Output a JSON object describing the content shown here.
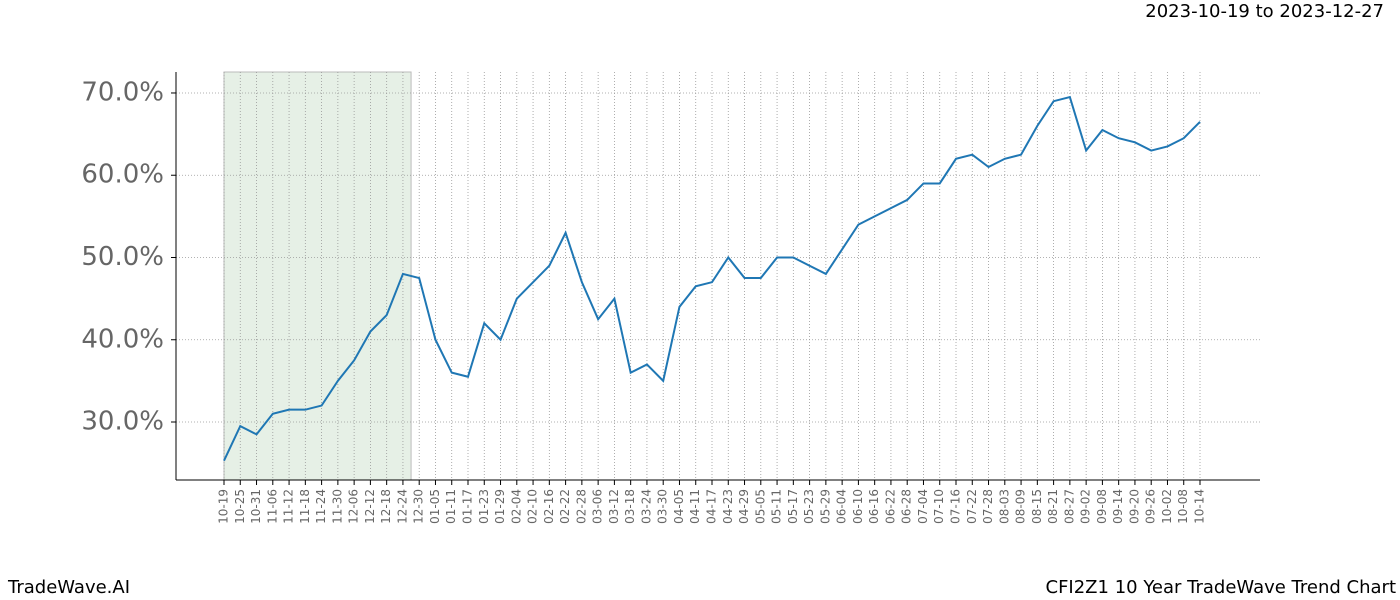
{
  "chart_data": {
    "type": "line",
    "subtitle": "2023-10-19 to 2023-12-27",
    "footer_left": "TradeWave.AI",
    "footer_right": "CFI2Z1 10 Year TradeWave Trend Chart",
    "categories": [
      "10-19",
      "10-25",
      "10-31",
      "11-06",
      "11-12",
      "11-18",
      "11-24",
      "11-30",
      "12-06",
      "12-12",
      "12-18",
      "12-24",
      "12-30",
      "01-05",
      "01-11",
      "01-17",
      "01-23",
      "01-29",
      "02-04",
      "02-10",
      "02-16",
      "02-22",
      "02-28",
      "03-06",
      "03-12",
      "03-18",
      "03-24",
      "03-30",
      "04-05",
      "04-11",
      "04-17",
      "04-23",
      "04-29",
      "05-05",
      "05-11",
      "05-17",
      "05-23",
      "05-29",
      "06-04",
      "06-10",
      "06-16",
      "06-22",
      "06-28",
      "07-04",
      "07-10",
      "07-16",
      "07-22",
      "07-28",
      "08-03",
      "08-09",
      "08-15",
      "08-21",
      "08-27",
      "09-02",
      "09-08",
      "09-14",
      "09-20",
      "09-26",
      "10-02",
      "10-08",
      "10-14"
    ],
    "series": [
      {
        "color": "#1f77b4",
        "values": [
          25.3,
          29.5,
          28.5,
          31,
          31.5,
          31.5,
          32,
          35,
          37.5,
          41,
          43,
          48,
          47.5,
          40,
          36,
          35.5,
          42,
          40,
          45,
          47,
          49,
          53,
          47,
          42.5,
          45,
          36,
          37,
          35,
          44,
          46.5,
          47,
          50,
          47.5,
          47.5,
          50,
          50,
          49,
          48,
          51,
          54,
          55,
          56,
          57,
          59,
          59,
          62,
          62.5,
          61,
          62,
          62.5,
          66,
          69,
          69.5,
          63,
          65.5,
          64.5,
          64,
          63,
          63.5,
          64.5,
          66.5
        ]
      }
    ],
    "highlight_color": "#e6f0e6",
    "ylim": [
      22.95,
      72.55
    ],
    "yticks": [
      {
        "value": 30,
        "label": "30.0%"
      },
      {
        "value": 40,
        "label": "40.0%"
      },
      {
        "value": 50,
        "label": "50.0%"
      },
      {
        "value": 60,
        "label": "60.0%"
      },
      {
        "value": 70,
        "label": "70.0%"
      }
    ],
    "grid": true
  }
}
